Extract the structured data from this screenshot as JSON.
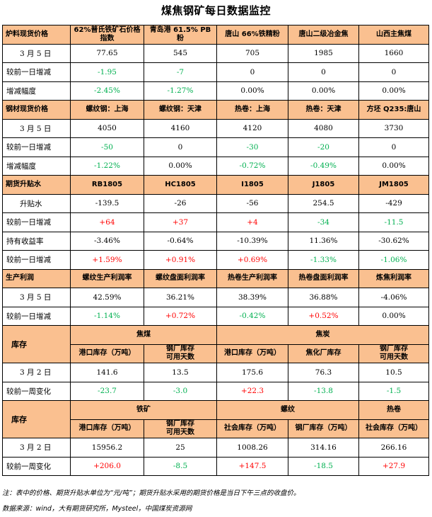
{
  "title": "煤焦钢矿每日数据监控",
  "colors": {
    "header_bg": "#fac090",
    "up": "#ff0000",
    "down": "#00b050"
  },
  "furnace": {
    "heading": "炉料现货价格",
    "cols": [
      "62%普氏铁矿石价格指数",
      "青岛港 61.5% PB 粉",
      "唐山 66%铁精粉",
      "唐山二级冶金焦",
      "山西主焦煤"
    ],
    "date_label": "3 月 5 日",
    "prices": [
      "77.65",
      "545",
      "705",
      "1985",
      "1660"
    ],
    "change_label": "较前一日增减",
    "changes": [
      "-1.95",
      "-7",
      "0",
      "0",
      "0"
    ],
    "pct_label": "增减幅度",
    "pcts": [
      "-2.45%",
      "-1.27%",
      "0.00%",
      "0.00%",
      "0.00%"
    ]
  },
  "steel": {
    "heading": "钢材现货价格",
    "cols": [
      "螺纹钢：上海",
      "螺纹钢：天津",
      "热卷：上海",
      "热卷：天津",
      "方坯 Q235:唐山"
    ],
    "date_label": "3 月 5 日",
    "prices": [
      "4050",
      "4160",
      "4120",
      "4080",
      "3730"
    ],
    "change_label": "较前一日增减",
    "changes": [
      "-50",
      "0",
      "-30",
      "-20",
      "0"
    ],
    "pct_label": "增减幅度",
    "pcts": [
      "-1.22%",
      "0.00%",
      "-0.72%",
      "-0.49%",
      "0.00%"
    ]
  },
  "futures": {
    "heading": "期货升贴水",
    "cols": [
      "RB1805",
      "HC1805",
      "I1805",
      "J1805",
      "JM1805"
    ],
    "basis_label": "升贴水",
    "basis": [
      "-139.5",
      "-26",
      "-56",
      "254.5",
      "-429"
    ],
    "change_label": "较前一日增减",
    "changes": [
      "+64",
      "+37",
      "+4",
      "-34",
      "-11.5"
    ],
    "yield_label": "持有收益率",
    "yields": [
      "-3.46%",
      "-0.64%",
      "-10.39%",
      "11.36%",
      "-30.62%"
    ],
    "yield_change_label": "较前一日增减",
    "yield_changes": [
      "+1.59%",
      "+0.91%",
      "+0.69%",
      "-1.33%",
      "-1.06%"
    ]
  },
  "profit": {
    "heading": "生产利润",
    "cols": [
      "螺纹生产利润率",
      "螺纹盘面利润率",
      "热卷生产利润率",
      "热卷盘面利润率",
      "炼焦利润率"
    ],
    "date_label": "3 月 5 日",
    "values": [
      "42.59%",
      "36.21%",
      "38.39%",
      "36.88%",
      "-4.06%"
    ],
    "change_label": "较前一日增减",
    "changes": [
      "-1.14%",
      "+0.72%",
      "-0.42%",
      "+0.52%",
      "0.00%"
    ]
  },
  "inventory1": {
    "heading": "库存",
    "group_a": "焦煤",
    "group_b": "焦炭",
    "cols": [
      "港口库存（万吨）",
      "钢厂库存\n可用天数",
      "港口库存（万吨）",
      "焦化厂库存",
      "钢厂库存\n可用天数"
    ],
    "date_label": "3 月 2 日",
    "values": [
      "141.6",
      "13.5",
      "175.6",
      "76.3",
      "10.5"
    ],
    "change_label": "较前一周变化",
    "changes": [
      "-23.7",
      "-3.0",
      "+22.3",
      "-13.8",
      "-1.5"
    ]
  },
  "inventory2": {
    "heading": "库存",
    "group_a": "铁矿",
    "group_b": "螺纹",
    "group_c": "热卷",
    "cols": [
      "港口库存（万吨）",
      "钢厂库存\n可用天数",
      "社会库存（万吨）",
      "钢厂库存（万吨）",
      "社会库存（万吨）"
    ],
    "date_label": "3 月 2 日",
    "values": [
      "15956.2",
      "25",
      "1008.26",
      "314.16",
      "266.16"
    ],
    "change_label": "较前一周变化",
    "changes": [
      "+206.0",
      "-8.5",
      "+147.5",
      "-18.5",
      "+27.9"
    ]
  },
  "footnote": "注：表中的价格、期货升贴水单位为“元/吨”；期货升贴水采用的期货价格是当日下午三点的收盘价。",
  "source": "数据来源：wind，大有期货研究所，Mysteel，中国煤炭资源网"
}
